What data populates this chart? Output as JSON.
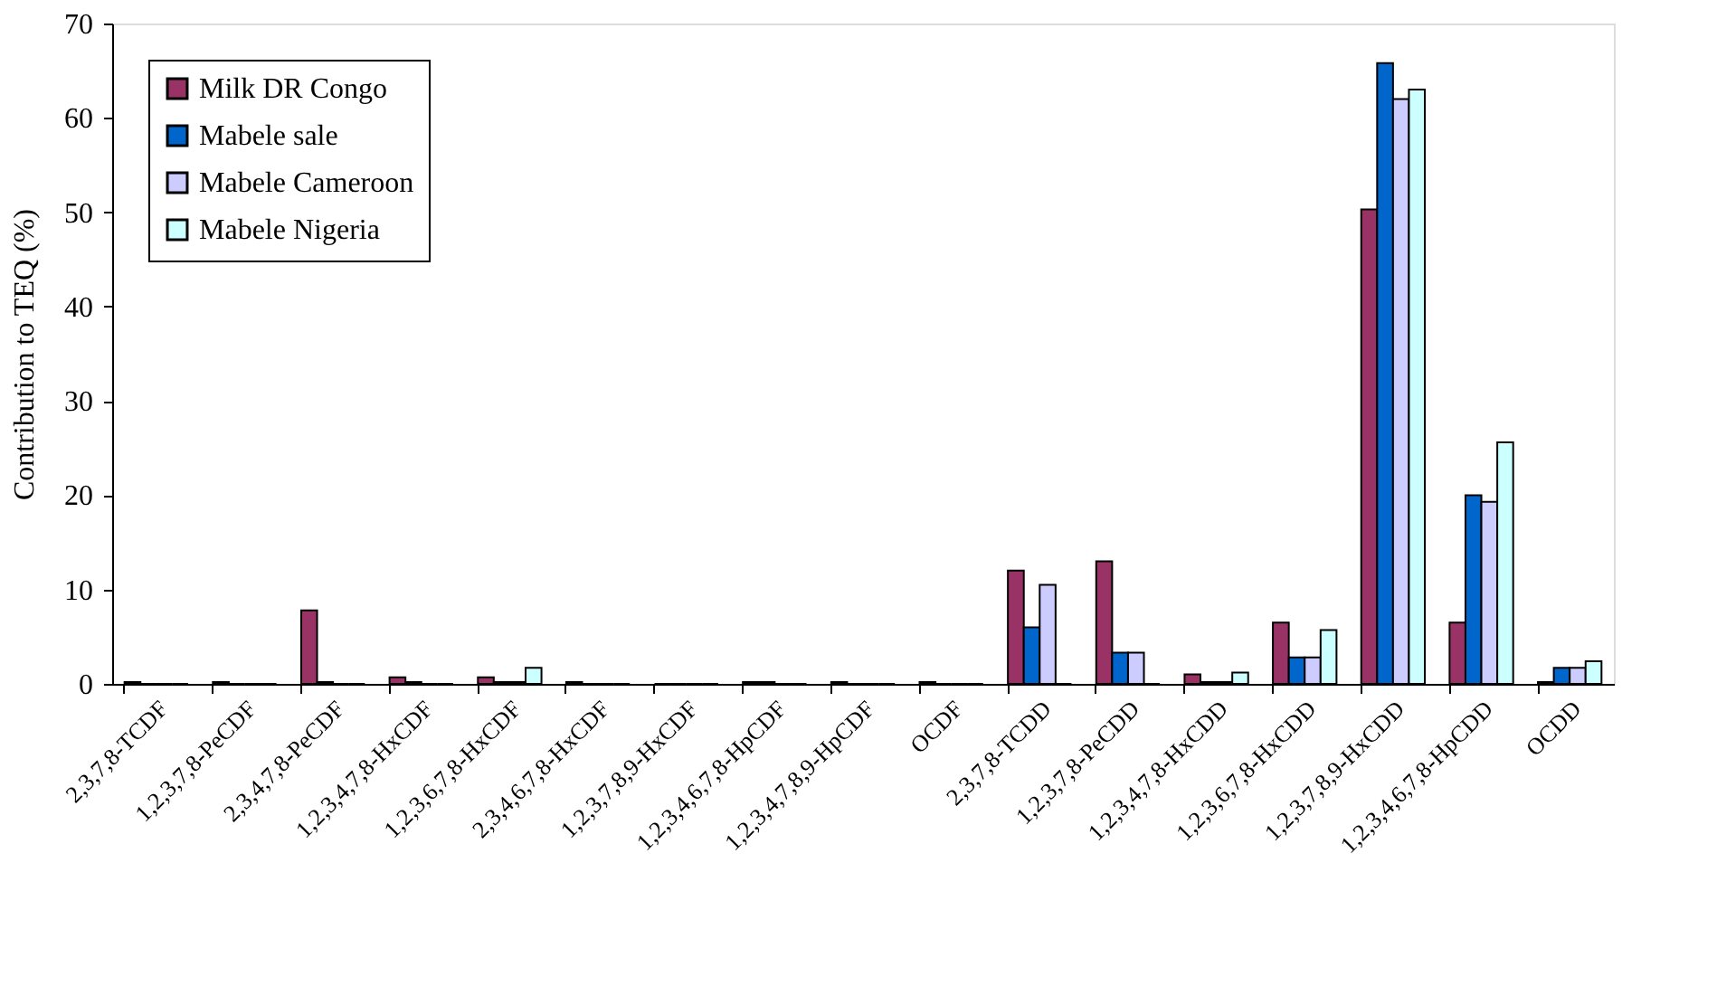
{
  "chart_data": {
    "type": "bar",
    "ylabel": "Contribution to TEQ (%)",
    "categories": [
      "2,3,7,8-TCDF",
      "1,2,3,7,8-PeCDF",
      "2,3,4,7,8-PeCDF",
      "1,2,3,4,7,8-HxCDF",
      "1,2,3,6,7,8-HxCDF",
      "2,3,4,6,7,8-HxCDF",
      "1,2,3,7,8,9-HxCDF",
      "1,2,3,4,6,7,8-HpCDF",
      "1,2,3,4,7,8,9-HpCDF",
      "OCDF",
      "2,3,7,8-TCDD",
      "1,2,3,7,8-PeCDD",
      "1,2,3,4,7,8-HxCDD",
      "1,2,3,6,7,8-HxCDD",
      "1,2,3,7,8,9-HxCDD",
      "1,2,3,4,6,7,8-HpCDD",
      "OCDD"
    ],
    "series": [
      {
        "name": "Milk DR Congo",
        "color": "#993366",
        "values": [
          0.2,
          0.2,
          7.8,
          0.7,
          0.7,
          0.2,
          0,
          0.2,
          0.2,
          0.2,
          12,
          13,
          1,
          6.5,
          50.3,
          6.5,
          0.2
        ]
      },
      {
        "name": "Mabele sale",
        "color": "#0066cc",
        "values": [
          0,
          0,
          0.2,
          0.2,
          0.2,
          0,
          0,
          0.2,
          0,
          0,
          6,
          3.3,
          0.2,
          2.8,
          65.8,
          20,
          1.7
        ]
      },
      {
        "name": "Mabele Cameroon",
        "color": "#ccccff",
        "values": [
          0,
          0,
          0,
          0,
          0.2,
          0,
          0,
          0,
          0,
          0,
          10.5,
          3.3,
          0.2,
          2.8,
          62,
          19.3,
          1.7
        ]
      },
      {
        "name": "Mabele Nigeria",
        "color": "#ccffff",
        "values": [
          0,
          0,
          0,
          0,
          1.7,
          0,
          0,
          0,
          0,
          0,
          0,
          0,
          1.2,
          5.7,
          63,
          25.6,
          2.4
        ]
      }
    ],
    "ylim": [
      0,
      70
    ],
    "yticks": [
      0,
      10,
      20,
      30,
      40,
      50,
      60,
      70
    ],
    "grid": false,
    "legend": "top left"
  }
}
